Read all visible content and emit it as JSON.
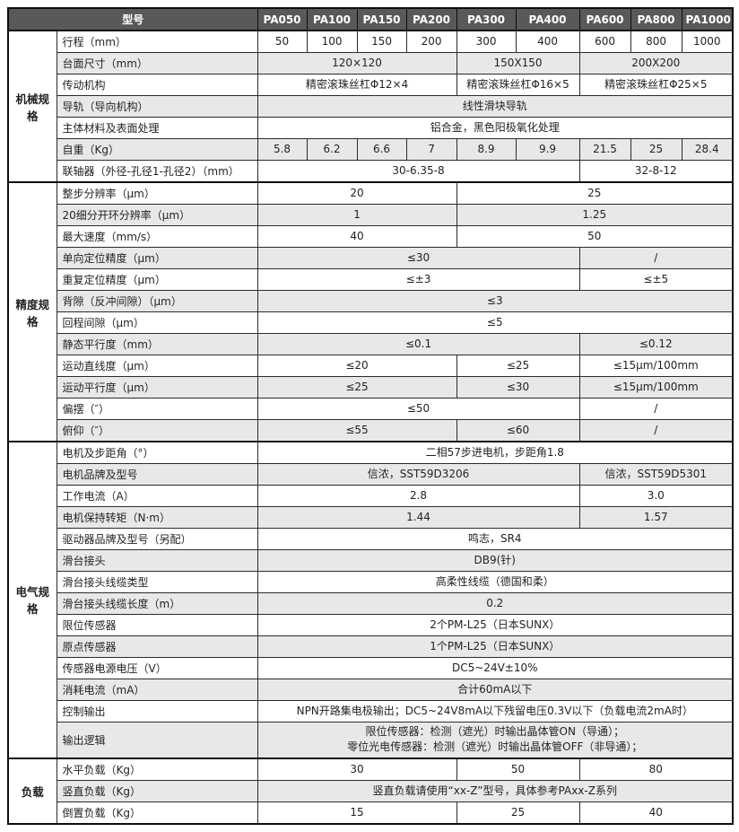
{
  "table": {
    "colors": {
      "header_bg": "#58595b",
      "header_text": "#ffffff",
      "alt_row_bg": "#e8e8e8",
      "row_bg": "#ffffff",
      "border": "#2b2b2b",
      "thick_border": "#0d0d0d",
      "text": "#231f20"
    },
    "header": {
      "model_label": "型号",
      "models": [
        "PA050",
        "PA100",
        "PA150",
        "PA200",
        "PA300",
        "PA400",
        "PA600",
        "PA800",
        "PA1000"
      ]
    },
    "sections": [
      {
        "category": "机械规格",
        "rows": [
          {
            "label": "行程（mm）",
            "cells": [
              {
                "text": "50",
                "span": 1
              },
              {
                "text": "100",
                "span": 1
              },
              {
                "text": "150",
                "span": 1
              },
              {
                "text": "200",
                "span": 1
              },
              {
                "text": "300",
                "span": 1
              },
              {
                "text": "400",
                "span": 1
              },
              {
                "text": "600",
                "span": 1
              },
              {
                "text": "800",
                "span": 1
              },
              {
                "text": "1000",
                "span": 1
              }
            ]
          },
          {
            "label": "台面尺寸（mm）",
            "cells": [
              {
                "text": "120×120",
                "span": 4
              },
              {
                "text": "150X150",
                "span": 2
              },
              {
                "text": "200X200",
                "span": 3
              }
            ]
          },
          {
            "label": "传动机构",
            "cells": [
              {
                "text": "精密滚珠丝杠Φ12×4",
                "span": 4
              },
              {
                "text": "精密滚珠丝杠Φ16×5",
                "span": 2
              },
              {
                "text": "精密滚珠丝杠Φ25×5",
                "span": 3
              }
            ]
          },
          {
            "label": "导轨（导向机构）",
            "cells": [
              {
                "text": "线性滑块导轨",
                "span": 9
              }
            ]
          },
          {
            "label": "主体材料及表面处理",
            "cells": [
              {
                "text": "铝合金，黑色阳极氧化处理",
                "span": 9
              }
            ]
          },
          {
            "label": "自重（Kg）",
            "cells": [
              {
                "text": "5.8",
                "span": 1
              },
              {
                "text": "6.2",
                "span": 1
              },
              {
                "text": "6.6",
                "span": 1
              },
              {
                "text": "7",
                "span": 1
              },
              {
                "text": "8.9",
                "span": 1
              },
              {
                "text": "9.9",
                "span": 1
              },
              {
                "text": "21.5",
                "span": 1
              },
              {
                "text": "25",
                "span": 1
              },
              {
                "text": "28.4",
                "span": 1
              }
            ]
          },
          {
            "label": "联轴器（外径-孔径1-孔径2）（mm）",
            "cells": [
              {
                "text": "30-6.35-8",
                "span": 6
              },
              {
                "text": "32-8-12",
                "span": 3
              }
            ]
          }
        ]
      },
      {
        "category": "精度规格",
        "rows": [
          {
            "label": "整步分辨率（μm）",
            "cells": [
              {
                "text": "20",
                "span": 4
              },
              {
                "text": "25",
                "span": 5
              }
            ]
          },
          {
            "label": "20细分开环分辨率（μm）",
            "cells": [
              {
                "text": "1",
                "span": 4
              },
              {
                "text": "1.25",
                "span": 5
              }
            ]
          },
          {
            "label": "最大速度（mm/s）",
            "cells": [
              {
                "text": "40",
                "span": 4
              },
              {
                "text": "50",
                "span": 5
              }
            ]
          },
          {
            "label": "单向定位精度（μm）",
            "cells": [
              {
                "text": "≤30",
                "span": 6
              },
              {
                "text": "/",
                "span": 3
              }
            ]
          },
          {
            "label": "重复定位精度（μm）",
            "cells": [
              {
                "text": "≤±3",
                "span": 6
              },
              {
                "text": "≤±5",
                "span": 3
              }
            ]
          },
          {
            "label": "背隙（反冲间隙）（μm）",
            "cells": [
              {
                "text": "≤3",
                "span": 9
              }
            ]
          },
          {
            "label": "回程间隙（μm）",
            "cells": [
              {
                "text": "≤5",
                "span": 9
              }
            ]
          },
          {
            "label": "静态平行度（mm）",
            "cells": [
              {
                "text": "≤0.1",
                "span": 6
              },
              {
                "text": "≤0.12",
                "span": 3
              }
            ]
          },
          {
            "label": "运动直线度（μm）",
            "cells": [
              {
                "text": "≤20",
                "span": 4
              },
              {
                "text": "≤25",
                "span": 2
              },
              {
                "text": "≤15μm/100mm",
                "span": 3
              }
            ]
          },
          {
            "label": "运动平行度（μm）",
            "cells": [
              {
                "text": "≤25",
                "span": 4
              },
              {
                "text": "≤30",
                "span": 2
              },
              {
                "text": "≤15μm/100mm",
                "span": 3
              }
            ]
          },
          {
            "label": "偏摆（″）",
            "cells": [
              {
                "text": "≤50",
                "span": 6
              },
              {
                "text": "/",
                "span": 3
              }
            ]
          },
          {
            "label": "俯仰（″）",
            "cells": [
              {
                "text": "≤55",
                "span": 4
              },
              {
                "text": "≤60",
                "span": 2
              },
              {
                "text": "/",
                "span": 3
              }
            ]
          }
        ]
      },
      {
        "category": "电气规格",
        "rows": [
          {
            "label": "电机及步距角（°）",
            "cells": [
              {
                "text": "二相57步进电机，步距角1.8",
                "span": 9
              }
            ]
          },
          {
            "label": "电机品牌及型号",
            "cells": [
              {
                "text": "信浓，SST59D3206",
                "span": 6
              },
              {
                "text": "信浓，SST59D5301",
                "span": 3
              }
            ]
          },
          {
            "label": "工作电流（A）",
            "cells": [
              {
                "text": "2.8",
                "span": 6
              },
              {
                "text": "3.0",
                "span": 3
              }
            ]
          },
          {
            "label": "电机保持转矩（N·m）",
            "cells": [
              {
                "text": "1.44",
                "span": 6
              },
              {
                "text": "1.57",
                "span": 3
              }
            ]
          },
          {
            "label": "驱动器品牌及型号（另配）",
            "cells": [
              {
                "text": "鸣志，SR4",
                "span": 9
              }
            ]
          },
          {
            "label": "滑台接头",
            "cells": [
              {
                "text": "DB9(针)",
                "span": 9
              }
            ]
          },
          {
            "label": "滑台接头线缆类型",
            "cells": [
              {
                "text": "高柔性线缆（德国和柔）",
                "span": 9
              }
            ]
          },
          {
            "label": "滑台接头线缆长度（m）",
            "cells": [
              {
                "text": "0.2",
                "span": 9
              }
            ]
          },
          {
            "label": "限位传感器",
            "cells": [
              {
                "text": "2个PM-L25（日本SUNX）",
                "span": 9
              }
            ]
          },
          {
            "label": "原点传感器",
            "cells": [
              {
                "text": "1个PM-L25（日本SUNX）",
                "span": 9
              }
            ]
          },
          {
            "label": "传感器电源电压（V）",
            "cells": [
              {
                "text": "DC5~24V±10%",
                "span": 9
              }
            ]
          },
          {
            "label": "消耗电流（mA）",
            "cells": [
              {
                "text": "合计60mA以下",
                "span": 9
              }
            ]
          },
          {
            "label": "控制输出",
            "cells": [
              {
                "text": "NPN开路集电极输出；DC5~24V8mA以下残留电压0.3V以下（负载电流2mA时）",
                "span": 9
              }
            ]
          },
          {
            "label": "输出逻辑",
            "cells": [
              {
                "text": "限位传感器：检测（遮光）时输出晶体管ON（导通）；\n零位光电传感器：检测（遮光）时输出晶体管OFF（非导通）；",
                "span": 9
              }
            ]
          }
        ]
      },
      {
        "category": "负载",
        "rows": [
          {
            "label": "水平负载（Kg）",
            "cells": [
              {
                "text": "30",
                "span": 4
              },
              {
                "text": "50",
                "span": 2
              },
              {
                "text": "80",
                "span": 3
              }
            ]
          },
          {
            "label": "竖直负载（Kg）",
            "cells": [
              {
                "text": "竖直负载请使用“xx-Z”型号，具体参考PAxx-Z系列",
                "span": 9
              }
            ]
          },
          {
            "label": "倒置负载（Kg）",
            "cells": [
              {
                "text": "15",
                "span": 4
              },
              {
                "text": "25",
                "span": 2
              },
              {
                "text": "40",
                "span": 3
              }
            ]
          }
        ]
      }
    ]
  }
}
